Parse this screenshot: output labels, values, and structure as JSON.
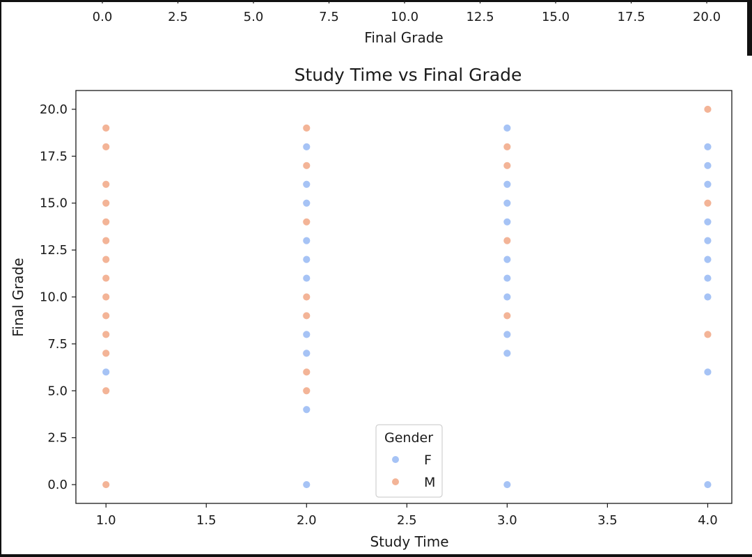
{
  "top_partial_axis": {
    "xlabel": "Final Grade",
    "tick_labels": [
      "0.0",
      "2.5",
      "5.0",
      "7.5",
      "10.0",
      "12.5",
      "15.0",
      "17.5",
      "20.0"
    ]
  },
  "chart_data": {
    "type": "scatter",
    "title": "Study Time vs Final Grade",
    "xlabel": "Study Time",
    "ylabel": "Final Grade",
    "xlim": [
      0.85,
      4.12
    ],
    "ylim": [
      -1.0,
      21.0
    ],
    "xticks": [
      1.0,
      1.5,
      2.0,
      2.5,
      3.0,
      3.5,
      4.0
    ],
    "x_tick_labels": [
      "1.0",
      "1.5",
      "2.0",
      "2.5",
      "3.0",
      "3.5",
      "4.0"
    ],
    "yticks": [
      0.0,
      2.5,
      5.0,
      7.5,
      10.0,
      12.5,
      15.0,
      17.5,
      20.0
    ],
    "y_tick_labels": [
      "0.0",
      "2.5",
      "5.0",
      "7.5",
      "10.0",
      "12.5",
      "15.0",
      "17.5",
      "20.0"
    ],
    "grid": false,
    "legend": {
      "title": "Gender",
      "placement": "lower-center"
    },
    "series": [
      {
        "name": "F",
        "color": "#a6c3f5",
        "points": [
          [
            1,
            6
          ],
          [
            2,
            0
          ],
          [
            2,
            4
          ],
          [
            2,
            7
          ],
          [
            2,
            8
          ],
          [
            2,
            11
          ],
          [
            2,
            12
          ],
          [
            2,
            13
          ],
          [
            2,
            15
          ],
          [
            2,
            16
          ],
          [
            2,
            18
          ],
          [
            3,
            0
          ],
          [
            3,
            7
          ],
          [
            3,
            8
          ],
          [
            3,
            10
          ],
          [
            3,
            11
          ],
          [
            3,
            12
          ],
          [
            3,
            14
          ],
          [
            3,
            15
          ],
          [
            3,
            16
          ],
          [
            3,
            19
          ],
          [
            4,
            0
          ],
          [
            4,
            6
          ],
          [
            4,
            10
          ],
          [
            4,
            11
          ],
          [
            4,
            12
          ],
          [
            4,
            13
          ],
          [
            4,
            14
          ],
          [
            4,
            16
          ],
          [
            4,
            17
          ],
          [
            4,
            18
          ]
        ]
      },
      {
        "name": "M",
        "color": "#f3b497",
        "points": [
          [
            1,
            0
          ],
          [
            1,
            5
          ],
          [
            1,
            7
          ],
          [
            1,
            8
          ],
          [
            1,
            9
          ],
          [
            1,
            10
          ],
          [
            1,
            11
          ],
          [
            1,
            12
          ],
          [
            1,
            13
          ],
          [
            1,
            14
          ],
          [
            1,
            15
          ],
          [
            1,
            16
          ],
          [
            1,
            18
          ],
          [
            1,
            19
          ],
          [
            2,
            5
          ],
          [
            2,
            6
          ],
          [
            2,
            9
          ],
          [
            2,
            10
          ],
          [
            2,
            14
          ],
          [
            2,
            17
          ],
          [
            2,
            19
          ],
          [
            3,
            9
          ],
          [
            3,
            13
          ],
          [
            3,
            17
          ],
          [
            3,
            18
          ],
          [
            4,
            8
          ],
          [
            4,
            15
          ],
          [
            4,
            20
          ]
        ]
      }
    ]
  }
}
